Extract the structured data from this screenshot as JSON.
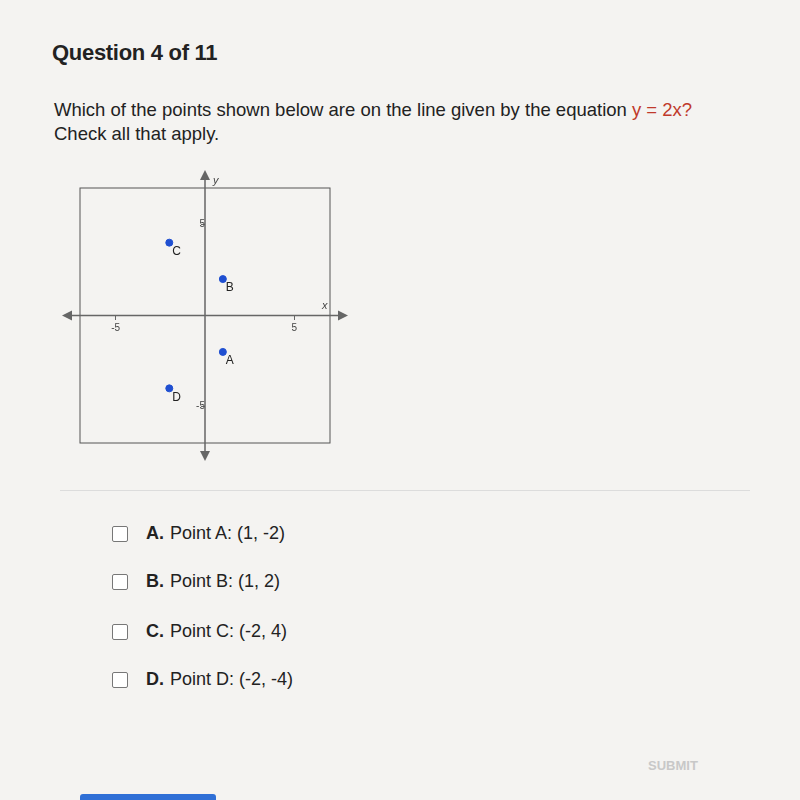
{
  "header": "Question 4 of 11",
  "question": {
    "text": "Which of the points shown below are on the line given by the equation",
    "equation": "y = 2x?",
    "instruction": "Check all that apply."
  },
  "chart_data": {
    "type": "scatter",
    "x": [
      1,
      1,
      -2,
      -2
    ],
    "values": [
      -2,
      2,
      4,
      -4
    ],
    "point_labels": [
      "A",
      "B",
      "C",
      "D"
    ],
    "color": "#1f4fd1",
    "x_label": "x",
    "y_label": "y",
    "xlim": [
      -7,
      7
    ],
    "ylim": [
      -7,
      7
    ],
    "xticks": [
      -5,
      5
    ],
    "yticks": [
      -5,
      5
    ],
    "grid": false
  },
  "options": [
    {
      "letter": "A.",
      "text": "Point A: (1, -2)"
    },
    {
      "letter": "B.",
      "text": "Point B: (1, 2)"
    },
    {
      "letter": "C.",
      "text": "Point C: (-2, 4)"
    },
    {
      "letter": "D.",
      "text": "Point D: (-2, -4)"
    }
  ],
  "submit": "SUBMIT"
}
